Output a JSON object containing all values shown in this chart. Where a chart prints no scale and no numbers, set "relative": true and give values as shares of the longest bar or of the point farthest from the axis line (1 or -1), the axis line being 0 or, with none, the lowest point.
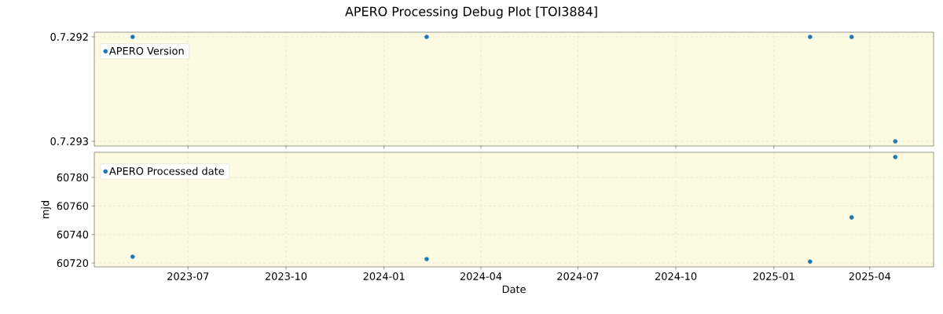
{
  "chart_data": [
    {
      "type": "scatter",
      "title": "APERO Processing Debug Plot [TOI3884]",
      "series": [
        {
          "name": "APERO Version",
          "color": "#1f77b4",
          "x": [
            "2023-05-10",
            "2024-02-10",
            "2025-02-04",
            "2025-03-15",
            "2025-04-25"
          ],
          "values": [
            1,
            1,
            1,
            1,
            0
          ]
        }
      ],
      "xlim": [
        "2023-04-04",
        "2025-05-31"
      ],
      "xticks": [
        {
          "value": "2023-07-01",
          "label": null
        },
        {
          "value": "2023-10-01",
          "label": null
        },
        {
          "value": "2024-01-01",
          "label": null
        },
        {
          "value": "2024-04-01",
          "label": null
        },
        {
          "value": "2024-07-01",
          "label": null
        },
        {
          "value": "2024-10-01",
          "label": null
        },
        {
          "value": "2025-01-01",
          "label": null
        },
        {
          "value": "2025-04-01",
          "label": null
        }
      ],
      "relative": true,
      "annotations": [
        "0.7.292",
        "0.7.293"
      ],
      "tick_labels": "y",
      "grid": true,
      "legend": "top left",
      "marker": "circle"
    },
    {
      "type": "scatter",
      "xlabel": "Date",
      "ylabel": "mjd",
      "series": [
        {
          "name": "APERO Processed date",
          "color": "#1f77b4",
          "x": [
            "2023-05-10",
            "2024-02-10",
            "2025-02-04",
            "2025-03-15",
            "2025-04-25"
          ],
          "values": [
            60724.4,
            60722.8,
            60721,
            60752,
            60794.3
          ]
        }
      ],
      "xlim": [
        "2023-04-04",
        "2025-05-31"
      ],
      "xticks": [
        {
          "value": "2023-07-01",
          "label": "2023-07"
        },
        {
          "value": "2023-10-01",
          "label": "2023-10"
        },
        {
          "value": "2024-01-01",
          "label": "2024-01"
        },
        {
          "value": "2024-04-01",
          "label": "2024-04"
        },
        {
          "value": "2024-07-01",
          "label": "2024-07"
        },
        {
          "value": "2024-10-01",
          "label": "2024-10"
        },
        {
          "value": "2025-01-01",
          "label": "2025-01"
        },
        {
          "value": "2025-04-01",
          "label": "2025-04"
        }
      ],
      "ylim": [
        60717.3,
        60797.6
      ],
      "yticks": [
        60720,
        60740,
        60760,
        60780
      ],
      "grid": true,
      "legend": "top left",
      "marker": "circle"
    }
  ]
}
